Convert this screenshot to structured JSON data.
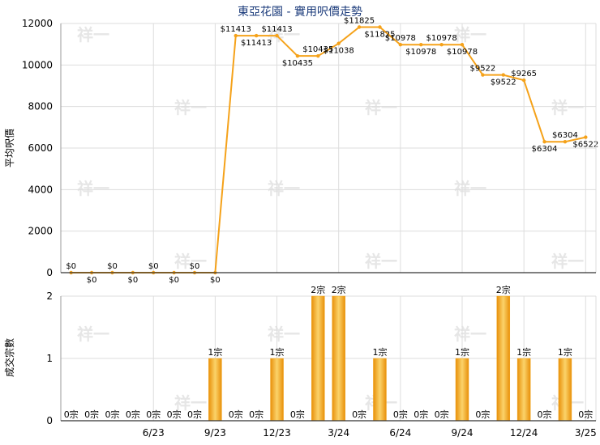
{
  "chart_data": [
    {
      "type": "line",
      "title": "東亞花園 - 實用呎價走勢",
      "ylabel": "平均呎價",
      "ylim": [
        0,
        12000
      ],
      "yticks": [
        "0",
        "2000",
        "4000",
        "6000",
        "8000",
        "10000",
        "12000"
      ],
      "grid": true,
      "categories": [
        "2/23",
        "3/23",
        "4/23",
        "5/23",
        "6/23",
        "7/23",
        "8/23",
        "9/23",
        "10/23",
        "11/23",
        "12/23",
        "1/24",
        "2/24",
        "3/24",
        "4/24",
        "5/24",
        "6/24",
        "7/24",
        "8/24",
        "9/24",
        "10/24",
        "11/24",
        "12/24",
        "1/25",
        "2/25",
        "3/25"
      ],
      "values": [
        0,
        0,
        0,
        0,
        0,
        0,
        0,
        0,
        11413,
        11413,
        11413,
        10435,
        10435,
        11038,
        11825,
        11825,
        10978,
        10978,
        10978,
        10978,
        9522,
        9522,
        9265,
        6304,
        6304,
        6522
      ],
      "value_labels": [
        "$0",
        "$0",
        "$0",
        "$0",
        "$0",
        "$0",
        "$0",
        "$0",
        "$11413",
        "$11413",
        "$11413",
        "$10435",
        "$10435",
        "$11038",
        "$11825",
        "$11825",
        "$10978",
        "$10978",
        "$10978",
        "$10978",
        "$9522",
        "$9522",
        "$9265",
        "$6304",
        "$6304",
        "$6522"
      ]
    },
    {
      "type": "bar",
      "ylabel": "成交宗數",
      "ylim": [
        0,
        2
      ],
      "yticks": [
        "0",
        "1",
        "2"
      ],
      "xticks": [
        {
          "index": 4,
          "label": "6/23"
        },
        {
          "index": 7,
          "label": "9/23"
        },
        {
          "index": 10,
          "label": "12/23"
        },
        {
          "index": 13,
          "label": "3/24"
        },
        {
          "index": 16,
          "label": "6/24"
        },
        {
          "index": 19,
          "label": "9/24"
        },
        {
          "index": 22,
          "label": "12/24"
        },
        {
          "index": 25,
          "label": "3/25"
        }
      ],
      "values": [
        0,
        0,
        0,
        0,
        0,
        0,
        0,
        1,
        0,
        0,
        1,
        0,
        2,
        2,
        0,
        1,
        0,
        0,
        0,
        1,
        0,
        2,
        1,
        0,
        1,
        0
      ],
      "value_labels": [
        "0宗",
        "0宗",
        "0宗",
        "0宗",
        "0宗",
        "0宗",
        "0宗",
        "1宗",
        "0宗",
        "0宗",
        "1宗",
        "0宗",
        "2宗",
        "2宗",
        "0宗",
        "1宗",
        "0宗",
        "0宗",
        "0宗",
        "1宗",
        "0宗",
        "2宗",
        "1宗",
        "0宗",
        "1宗",
        "0宗"
      ]
    }
  ],
  "colors": {
    "line": "#f5a21a",
    "bar": "#f2a51c",
    "grid": "#dddddd",
    "title": "#1a3a7a"
  },
  "watermark": "祥一"
}
